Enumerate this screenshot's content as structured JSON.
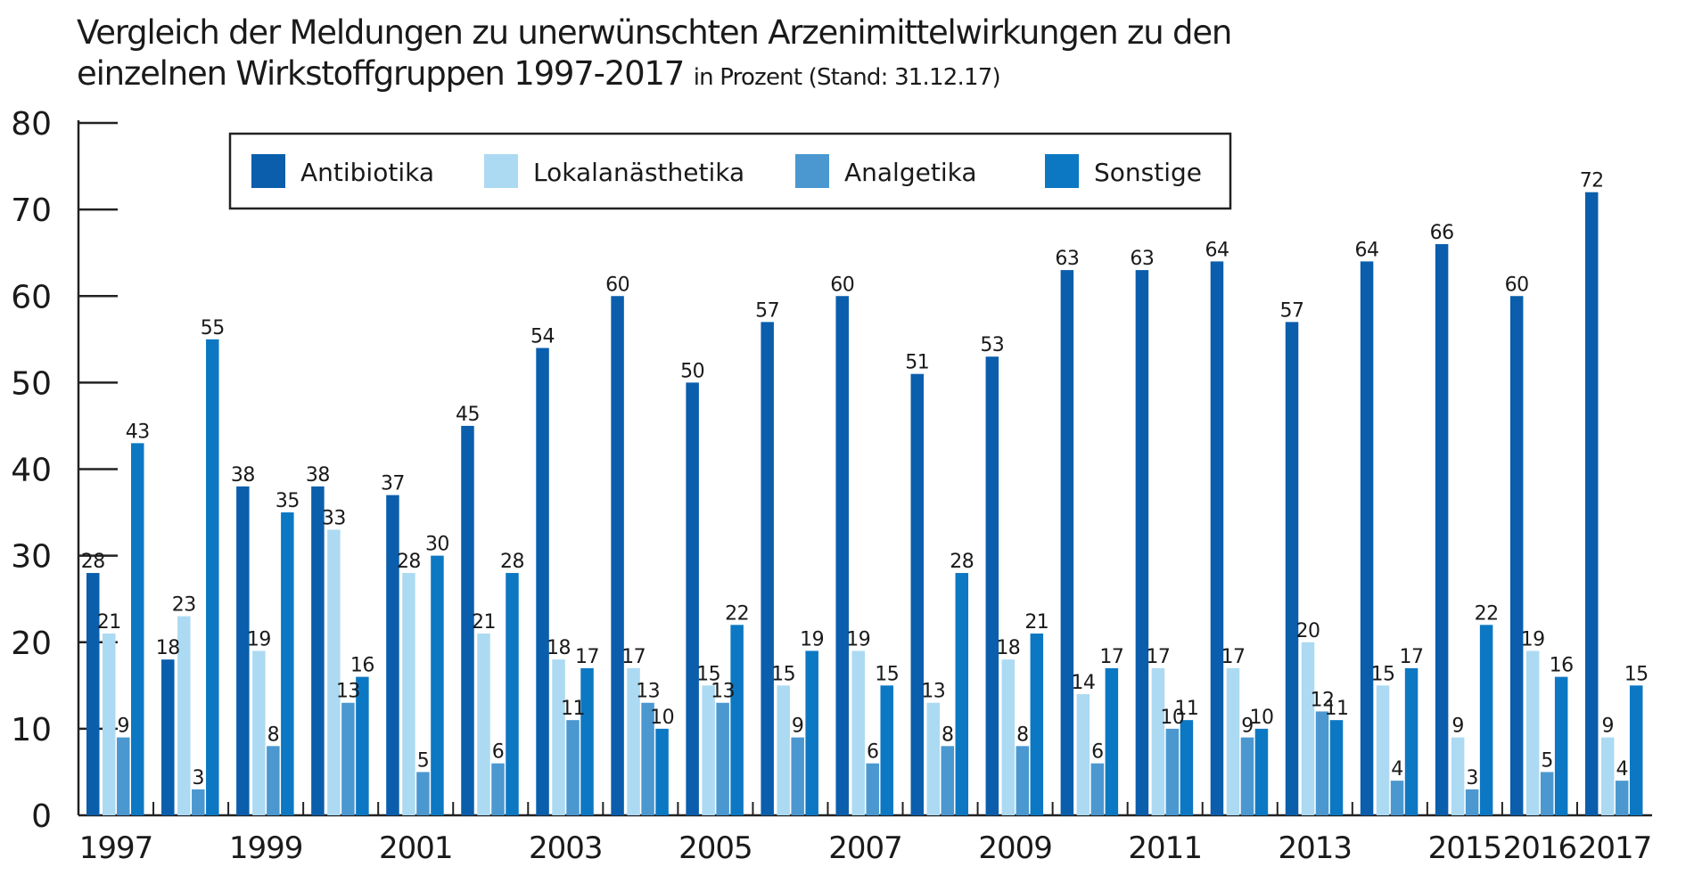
{
  "chart_data": {
    "type": "bar",
    "title": "Vergleich der Meldungen zu unerwünschten Arzenimittelwirkungen zu den einzelnen Wirkstoffgruppen 1997-2017",
    "title_line1": "Vergleich der Meldungen zu unerwünschten Arzenimittelwirkungen zu den",
    "title_line2": "einzelnen Wirkstoffgruppen 1997-2017",
    "subtitle": "in Prozent (Stand: 31.12.17)",
    "xlabel": "",
    "ylabel": "",
    "ylim": [
      0,
      80
    ],
    "yticks": [
      0,
      10,
      20,
      30,
      40,
      50,
      60,
      70,
      80
    ],
    "grid": false,
    "legend_position": "top",
    "categories": [
      "1997",
      "1998",
      "1999",
      "2000",
      "2001",
      "2002",
      "2003",
      "2004",
      "2005",
      "2006",
      "2007",
      "2008",
      "2009",
      "2010",
      "2011",
      "2012",
      "2013",
      "2014",
      "2015",
      "2016",
      "2017"
    ],
    "xtick_labels": [
      {
        "category": "1997",
        "label": "1997"
      },
      {
        "category": "1999",
        "label": "1999"
      },
      {
        "category": "2001",
        "label": "2001"
      },
      {
        "category": "2003",
        "label": "2003"
      },
      {
        "category": "2005",
        "label": "2005"
      },
      {
        "category": "2007",
        "label": "2007"
      },
      {
        "category": "2009",
        "label": "2009"
      },
      {
        "category": "2011",
        "label": "2011"
      },
      {
        "category": "2013",
        "label": "2013"
      },
      {
        "category": "2015",
        "label": "2015"
      },
      {
        "category": "2016",
        "label": "2016"
      },
      {
        "category": "2017",
        "label": "2017"
      }
    ],
    "series": [
      {
        "name": "Antibiotika",
        "color": "#0a5eac",
        "values": [
          28,
          18,
          38,
          38,
          37,
          45,
          54,
          60,
          50,
          57,
          60,
          51,
          53,
          63,
          63,
          64,
          57,
          64,
          66,
          60,
          72
        ]
      },
      {
        "name": "Lokalanästhetika",
        "color": "#acdaf2",
        "values": [
          21,
          23,
          19,
          33,
          28,
          21,
          18,
          17,
          15,
          15,
          19,
          13,
          18,
          14,
          17,
          17,
          20,
          15,
          9,
          19,
          9
        ]
      },
      {
        "name": "Analgetika",
        "color": "#4b98d0",
        "values": [
          9,
          3,
          8,
          13,
          5,
          6,
          11,
          13,
          13,
          9,
          6,
          8,
          8,
          6,
          10,
          9,
          12,
          4,
          3,
          5,
          4
        ]
      },
      {
        "name": "Sonstige",
        "color": "#0c78c3",
        "values": [
          43,
          55,
          35,
          16,
          30,
          28,
          17,
          10,
          22,
          19,
          15,
          28,
          21,
          17,
          11,
          10,
          11,
          17,
          22,
          16,
          15
        ]
      }
    ]
  }
}
